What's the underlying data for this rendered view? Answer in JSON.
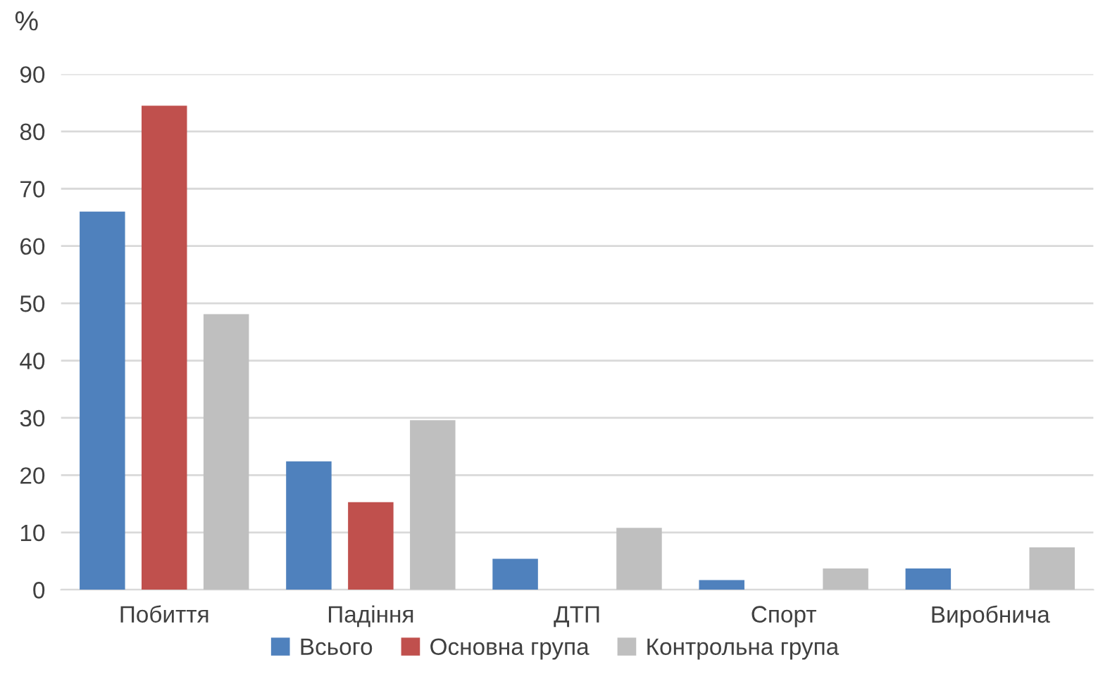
{
  "chart_data": {
    "type": "bar",
    "ylabel": "%",
    "categories": [
      "Побиття",
      "Падіння",
      "ДТП",
      "Спорт",
      "Виробнича"
    ],
    "series": [
      {
        "name": "Всього",
        "color": "#4f81bd",
        "values": [
          66,
          22.4,
          5.4,
          1.7,
          3.7
        ]
      },
      {
        "name": "Основна група",
        "color": "#c0504d",
        "values": [
          84.5,
          15.3,
          null,
          null,
          null
        ]
      },
      {
        "name": "Контрольна група",
        "color": "#bfbfbf",
        "values": [
          48.1,
          29.6,
          10.8,
          3.7,
          7.4
        ]
      }
    ],
    "ylim": [
      0,
      90
    ],
    "yticks": [
      0,
      10,
      20,
      30,
      40,
      50,
      60,
      70,
      80,
      90
    ],
    "grid": "y",
    "legend": "bottom"
  }
}
